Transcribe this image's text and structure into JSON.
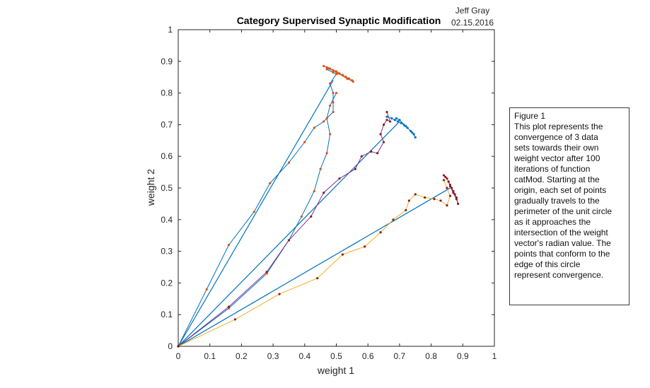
{
  "chart_data": {
    "type": "line",
    "title": "Category Supervised Synaptic Modification",
    "author": "Jeff Gray",
    "date": "02.15.2016",
    "xlabel": "weight 1",
    "ylabel": "weight 2",
    "xlim": [
      0,
      1
    ],
    "ylim": [
      0,
      1
    ],
    "xticks": [
      0,
      0.1,
      0.2,
      0.3,
      0.4,
      0.5,
      0.6,
      0.7,
      0.8,
      0.9,
      1
    ],
    "yticks": [
      0,
      0.1,
      0.2,
      0.3,
      0.4,
      0.5,
      0.6,
      0.7,
      0.8,
      0.9,
      1
    ],
    "xtick_labels": [
      "0",
      "0.1",
      "0.2",
      "0.3",
      "0.4",
      "0.5",
      "0.6",
      "0.7",
      "0.8",
      "0.9",
      "1"
    ],
    "ytick_labels": [
      "0",
      "0.1",
      "0.2",
      "0.3",
      "0.4",
      "0.5",
      "0.6",
      "0.7",
      "0.8",
      "0.9",
      "1"
    ],
    "grid": false,
    "colors": {
      "blue": "#0072bd",
      "orange": "#d95319",
      "yellow": "#edb120",
      "purple": "#7e2f8e",
      "marker_dark": "#8b1a1a"
    },
    "weight_vectors": [
      {
        "color": "#0072bd",
        "x": [
          0,
          0.49
        ],
        "y": [
          0,
          0.84
        ]
      },
      {
        "color": "#0072bd",
        "x": [
          0,
          0.7
        ],
        "y": [
          0,
          0.71
        ]
      },
      {
        "color": "#0072bd",
        "x": [
          0,
          0.86
        ],
        "y": [
          0,
          0.5
        ]
      }
    ],
    "series": [
      {
        "line_color": "#0072bd",
        "marker_color": "#d95319",
        "x": [
          0,
          0.09,
          0.16,
          0.24,
          0.29,
          0.35,
          0.4,
          0.43,
          0.46,
          0.49,
          0.49,
          0.49,
          0.48,
          0.5,
          0.49,
          0.47
        ],
        "y": [
          0,
          0.18,
          0.32,
          0.425,
          0.515,
          0.58,
          0.645,
          0.69,
          0.71,
          0.74,
          0.77,
          0.8,
          0.83,
          0.86,
          0.865,
          0.875
        ]
      },
      {
        "line_color": "#0072bd",
        "marker_color": "#d95319",
        "x": [
          0,
          0.16,
          0.28,
          0.35,
          0.39,
          0.43,
          0.45,
          0.47,
          0.48,
          0.47,
          0.48,
          0.5
        ],
        "y": [
          0,
          0.12,
          0.23,
          0.335,
          0.41,
          0.49,
          0.56,
          0.61,
          0.67,
          0.72,
          0.76,
          0.8
        ]
      },
      {
        "line_color": "#d95319",
        "marker_color": "#d95319",
        "x": [
          0.46,
          0.47,
          0.48,
          0.49,
          0.5,
          0.51,
          0.52,
          0.53,
          0.54,
          0.55,
          0.553,
          0.535,
          0.505,
          0.475
        ],
        "y": [
          0.885,
          0.881,
          0.877,
          0.872,
          0.868,
          0.862,
          0.857,
          0.851,
          0.846,
          0.84,
          0.836,
          0.845,
          0.862,
          0.878
        ]
      },
      {
        "line_color": "#7e2f8e",
        "marker_color": "#8b1a1a",
        "x": [
          0,
          0.16,
          0.28,
          0.35,
          0.42,
          0.46,
          0.51,
          0.56,
          0.58,
          0.61,
          0.63,
          0.65,
          0.64,
          0.65,
          0.66,
          0.67,
          0.66
        ],
        "y": [
          0,
          0.125,
          0.235,
          0.335,
          0.41,
          0.485,
          0.53,
          0.56,
          0.6,
          0.615,
          0.61,
          0.645,
          0.67,
          0.7,
          0.715,
          0.71,
          0.74
        ]
      },
      {
        "line_color": "#0072bd",
        "marker_color": "#0072bd",
        "x": [
          0.66,
          0.675,
          0.685,
          0.695,
          0.705,
          0.715,
          0.725,
          0.735,
          0.745,
          0.75,
          0.74,
          0.72,
          0.7,
          0.69
        ],
        "y": [
          0.725,
          0.72,
          0.715,
          0.71,
          0.705,
          0.698,
          0.69,
          0.68,
          0.67,
          0.66,
          0.675,
          0.695,
          0.715,
          0.72
        ]
      },
      {
        "line_color": "#edb120",
        "marker_color": "#8b1a1a",
        "x": [
          0,
          0.18,
          0.32,
          0.44,
          0.52,
          0.59,
          0.64,
          0.68,
          0.72,
          0.73,
          0.75,
          0.78,
          0.81,
          0.83,
          0.85,
          0.86,
          0.85,
          0.84
        ],
        "y": [
          0,
          0.085,
          0.165,
          0.215,
          0.29,
          0.315,
          0.36,
          0.4,
          0.43,
          0.46,
          0.48,
          0.47,
          0.465,
          0.46,
          0.445,
          0.475,
          0.5,
          0.525
        ]
      },
      {
        "line_color": "#7e2f8e",
        "marker_color": "#8b1a1a",
        "x": [
          0.84,
          0.845,
          0.85,
          0.855,
          0.86,
          0.865,
          0.87,
          0.875,
          0.88,
          0.885,
          0.88,
          0.87,
          0.86,
          0.855
        ],
        "y": [
          0.54,
          0.535,
          0.53,
          0.52,
          0.51,
          0.5,
          0.49,
          0.48,
          0.47,
          0.45,
          0.465,
          0.485,
          0.505,
          0.52
        ]
      }
    ],
    "annotation": [
      "Figure 1",
      "This plot represents the",
      "convergence of 3 data",
      "sets towards their own",
      "weight vector after 100",
      "iterations of function",
      "catMod. Starting at the",
      "origin, each set of points",
      "gradually travels to the",
      "perimeter of the unit circle",
      "as it approaches the",
      "intersection of the weight",
      "vector's radian value. The",
      "points that conform to the",
      "edge of this circle",
      "represent convergence."
    ]
  }
}
